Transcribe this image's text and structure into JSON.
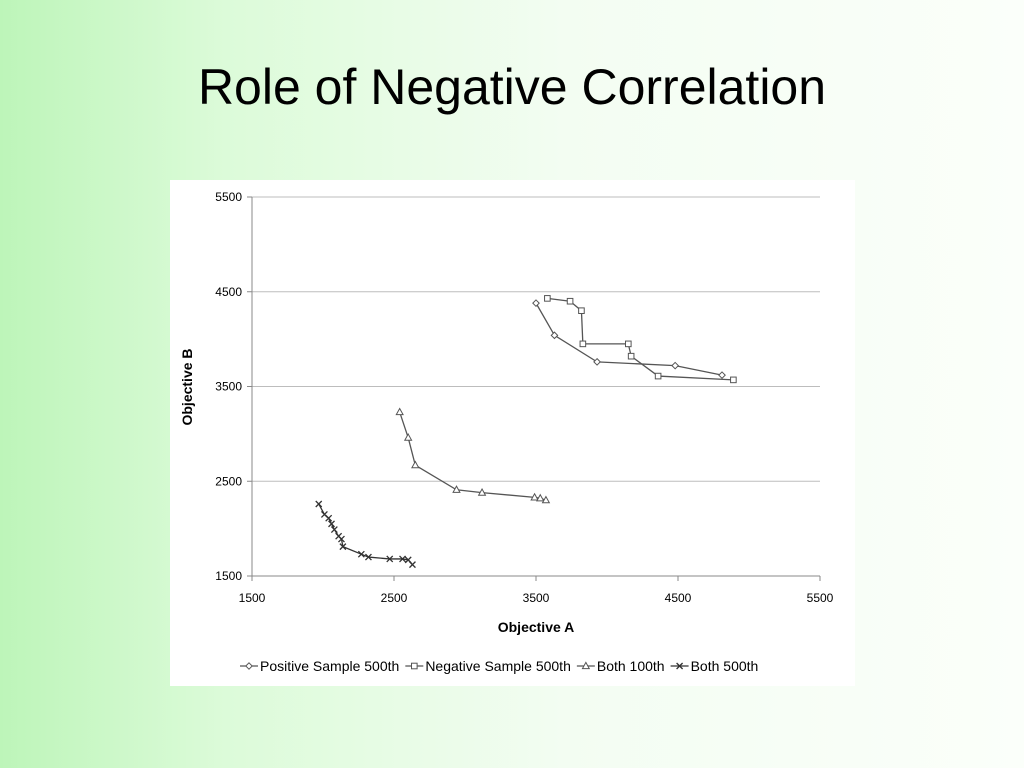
{
  "slide": {
    "title": "Role of Negative Correlation"
  },
  "chart_data": {
    "type": "line",
    "xlabel": "Objective A",
    "ylabel": "Objective B",
    "xlim": [
      1500,
      5500
    ],
    "ylim": [
      1500,
      5500
    ],
    "xticks": [
      1500,
      2500,
      3500,
      4500,
      5500
    ],
    "yticks": [
      1500,
      2500,
      3500,
      4500,
      5500
    ],
    "grid": "horizontal",
    "legend_position": "bottom",
    "series": [
      {
        "name": "Positive Sample 500th",
        "marker": "diamond",
        "color": "#555555",
        "points": [
          [
            3500,
            4380
          ],
          [
            3630,
            4040
          ],
          [
            3930,
            3760
          ],
          [
            4480,
            3720
          ],
          [
            4810,
            3620
          ]
        ]
      },
      {
        "name": "Negative Sample 500th",
        "marker": "square",
        "color": "#555555",
        "points": [
          [
            3580,
            4430
          ],
          [
            3740,
            4400
          ],
          [
            3820,
            4300
          ],
          [
            3830,
            3950
          ],
          [
            4150,
            3950
          ],
          [
            4170,
            3820
          ],
          [
            4360,
            3610
          ],
          [
            4890,
            3570
          ]
        ]
      },
      {
        "name": "Both 100th",
        "marker": "triangle",
        "color": "#555555",
        "points": [
          [
            2540,
            3230
          ],
          [
            2600,
            2960
          ],
          [
            2650,
            2670
          ],
          [
            2940,
            2410
          ],
          [
            3120,
            2380
          ],
          [
            3490,
            2330
          ],
          [
            3530,
            2320
          ],
          [
            3570,
            2300
          ]
        ]
      },
      {
        "name": "Both 500th",
        "marker": "x",
        "color": "#333333",
        "points": [
          [
            1970,
            2260
          ],
          [
            2010,
            2150
          ],
          [
            2040,
            2110
          ],
          [
            2060,
            2050
          ],
          [
            2080,
            1990
          ],
          [
            2110,
            1920
          ],
          [
            2130,
            1890
          ],
          [
            2140,
            1810
          ],
          [
            2270,
            1730
          ],
          [
            2320,
            1700
          ],
          [
            2470,
            1680
          ],
          [
            2560,
            1680
          ],
          [
            2600,
            1670
          ],
          [
            2630,
            1620
          ]
        ]
      }
    ]
  }
}
